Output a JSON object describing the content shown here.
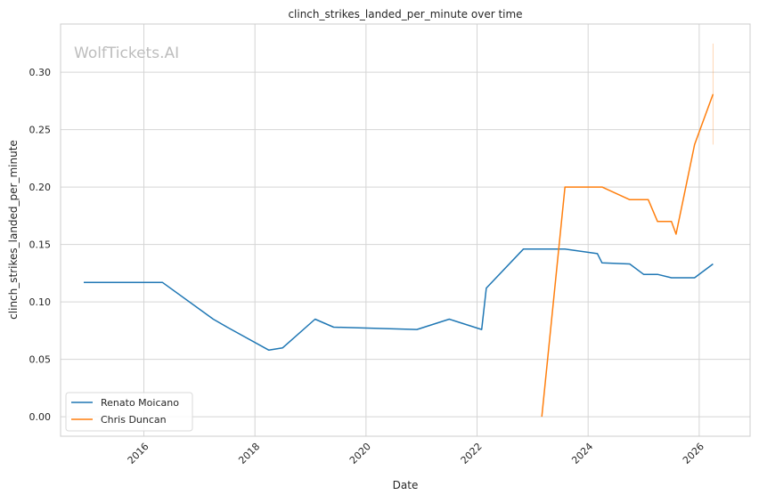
{
  "chart_data": {
    "type": "line",
    "title": "clinch_strikes_landed_per_minute over time",
    "xlabel": "Date",
    "ylabel": "clinch_strikes_landed_per_minute",
    "watermark": "WolfTickets.AI",
    "x_ticks": [
      "2016",
      "2018",
      "2020",
      "2022",
      "2024",
      "2026"
    ],
    "y_ticks": [
      "0.00",
      "0.05",
      "0.10",
      "0.15",
      "0.20",
      "0.25",
      "0.30"
    ],
    "xlim": [
      "2014-07-01",
      "2026-12-01"
    ],
    "ylim": [
      -0.017,
      0.342
    ],
    "grid": true,
    "legend_position": "lower-left",
    "series": [
      {
        "name": "Renato Moicano",
        "color": "#1f77b4",
        "points": [
          [
            "2014-12-01",
            0.117
          ],
          [
            "2016-05-01",
            0.117
          ],
          [
            "2017-04-01",
            0.085
          ],
          [
            "2017-07-01",
            0.078
          ],
          [
            "2018-04-01",
            0.058
          ],
          [
            "2018-07-01",
            0.06
          ],
          [
            "2019-02-01",
            0.085
          ],
          [
            "2019-06-01",
            0.078
          ],
          [
            "2020-12-01",
            0.076
          ],
          [
            "2021-07-01",
            0.085
          ],
          [
            "2022-02-01",
            0.076
          ],
          [
            "2022-03-01",
            0.112
          ],
          [
            "2022-11-01",
            0.146
          ],
          [
            "2023-08-01",
            0.146
          ],
          [
            "2024-03-01",
            0.142
          ],
          [
            "2024-04-01",
            0.134
          ],
          [
            "2024-10-01",
            0.133
          ],
          [
            "2025-01-01",
            0.124
          ],
          [
            "2025-04-01",
            0.124
          ],
          [
            "2025-07-01",
            0.121
          ],
          [
            "2025-12-01",
            0.121
          ],
          [
            "2026-04-01",
            0.133
          ]
        ]
      },
      {
        "name": "Chris Duncan",
        "color": "#ff7f0e",
        "points": [
          [
            "2023-03-01",
            0.0
          ],
          [
            "2023-08-01",
            0.2
          ],
          [
            "2024-04-01",
            0.2
          ],
          [
            "2024-10-01",
            0.189
          ],
          [
            "2025-02-01",
            0.189
          ],
          [
            "2025-04-01",
            0.17
          ],
          [
            "2025-07-01",
            0.17
          ],
          [
            "2025-08-01",
            0.159
          ],
          [
            "2025-12-01",
            0.237
          ],
          [
            "2026-04-01",
            0.281
          ]
        ],
        "error_bar": {
          "x": "2026-04-01",
          "low": 0.237,
          "high": 0.325
        }
      }
    ]
  }
}
